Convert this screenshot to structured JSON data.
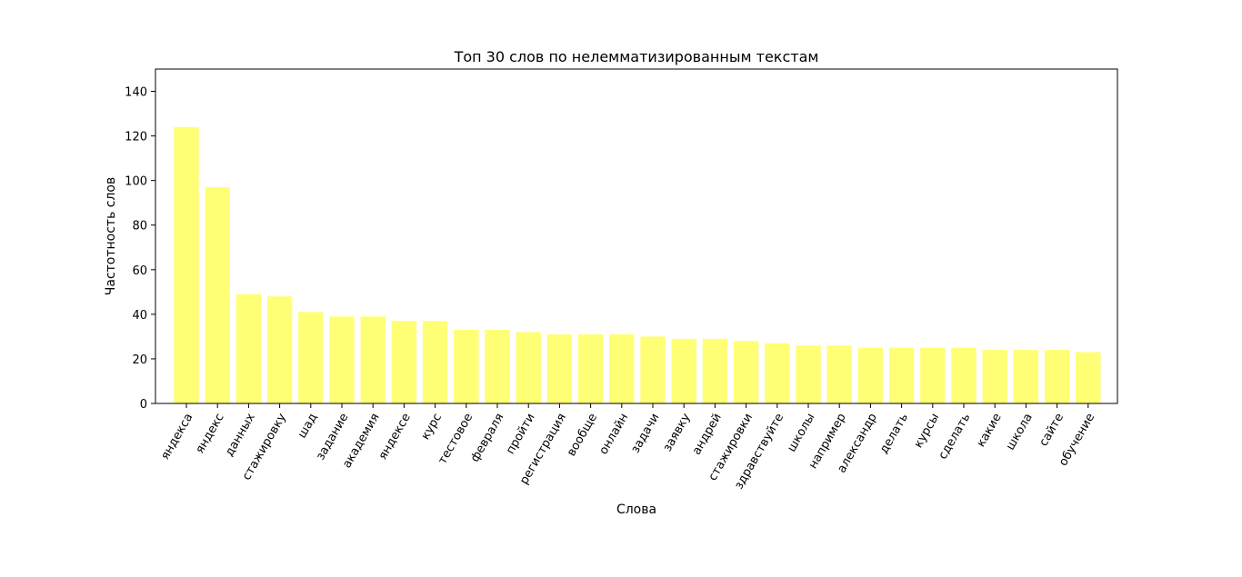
{
  "chart_data": {
    "type": "bar",
    "title": "Топ 30 слов по нелемматизированным текстам",
    "xlabel": "Слова",
    "ylabel": "Частотность слов",
    "ylim": [
      0,
      150
    ],
    "yticks": [
      0,
      20,
      40,
      60,
      80,
      100,
      120,
      140
    ],
    "grid": false,
    "bar_color": "#ffff75",
    "categories": [
      "яндекса",
      "яндекс",
      "данных",
      "стажировку",
      "шад",
      "задание",
      "академия",
      "яндексе",
      "курс",
      "тестовое",
      "февраля",
      "пройти",
      "регистрация",
      "вообще",
      "онлайн",
      "задачи",
      "заявку",
      "андрей",
      "стажировки",
      "здравствуйте",
      "школы",
      "например",
      "александр",
      "делать",
      "курсы",
      "сделать",
      "какие",
      "школа",
      "сайте",
      "обучение"
    ],
    "values": [
      124,
      97,
      49,
      48,
      41,
      39,
      39,
      37,
      37,
      33,
      33,
      32,
      31,
      31,
      31,
      30,
      29,
      29,
      28,
      27,
      26,
      26,
      25,
      25,
      25,
      25,
      24,
      24,
      24,
      23
    ]
  }
}
